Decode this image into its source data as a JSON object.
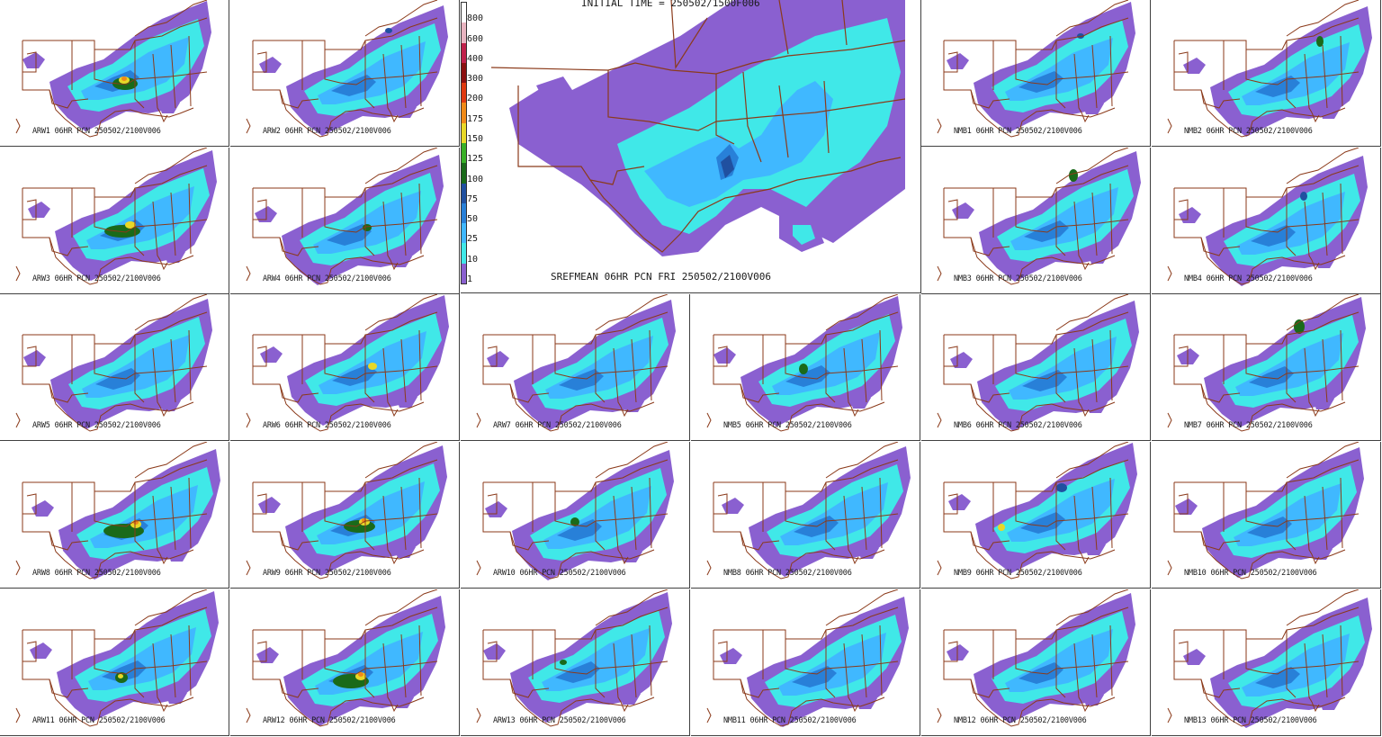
{
  "center_title": "INITIAL TIME = 250502/1500F006",
  "center_label": "SREFMEAN 06HR PCN FRI 250502/2100V006",
  "legend": {
    "levels": [
      "800",
      "600",
      "400",
      "300",
      "200",
      "175",
      "150",
      "125",
      "100",
      "75",
      "50",
      "25",
      "10",
      "1"
    ],
    "colors": [
      "#ffffff",
      "#e8b4c0",
      "#c0204a",
      "#8b1010",
      "#e03a10",
      "#f08a18",
      "#e8d828",
      "#3ab028",
      "#1a6a1a",
      "#2050a0",
      "#2880d8",
      "#40b8ff",
      "#40e8e8",
      "#8a60d0"
    ]
  },
  "panels": [
    {
      "label": "ARW1 06HR PCN 250502/2100V006"
    },
    {
      "label": "ARW2 06HR PCN 250502/2100V006"
    },
    {
      "label": "NMB1 06HR PCN 250502/2100V006"
    },
    {
      "label": "NMB2 06HR PCN 250502/2100V006"
    },
    {
      "label": "ARW3 06HR PCN 250502/2100V006"
    },
    {
      "label": "ARW4 06HR PCN 250502/2100V006"
    },
    {
      "label": "NMB3 06HR PCN 250502/2100V006"
    },
    {
      "label": "NMB4 06HR PCN 250502/2100V006"
    },
    {
      "label": "ARW5 06HR PCN 250502/2100V006"
    },
    {
      "label": "ARW6 06HR PCN 250502/2100V006"
    },
    {
      "label": "ARW7 06HR PCN 250502/2100V006"
    },
    {
      "label": "NMB5 06HR PCN 250502/2100V006"
    },
    {
      "label": "NMB6 06HR PCN 250502/2100V006"
    },
    {
      "label": "NMB7 06HR PCN 250502/2100V006"
    },
    {
      "label": "ARW8 06HR PCN 250502/2100V006"
    },
    {
      "label": "ARW9 06HR PCN 250502/2100V006"
    },
    {
      "label": "ARW10 06HR PCN 250502/2100V006"
    },
    {
      "label": "NMB8 06HR PCN 250502/2100V006"
    },
    {
      "label": "NMB9 06HR PCN 250502/2100V006"
    },
    {
      "label": "NMB10 06HR PCN 250502/2100V006"
    },
    {
      "label": "ARW11 06HR PCN 250502/2100V006"
    },
    {
      "label": "ARW12 06HR PCN 250502/2100V006"
    },
    {
      "label": "ARW13 06HR PCN 250502/2100V006"
    },
    {
      "label": "NMB11 06HR PCN 250502/2100V006"
    },
    {
      "label": "NMB12 06HR PCN 250502/2100V006"
    },
    {
      "label": "NMB13 06HR PCN 250502/2100V006"
    }
  ]
}
